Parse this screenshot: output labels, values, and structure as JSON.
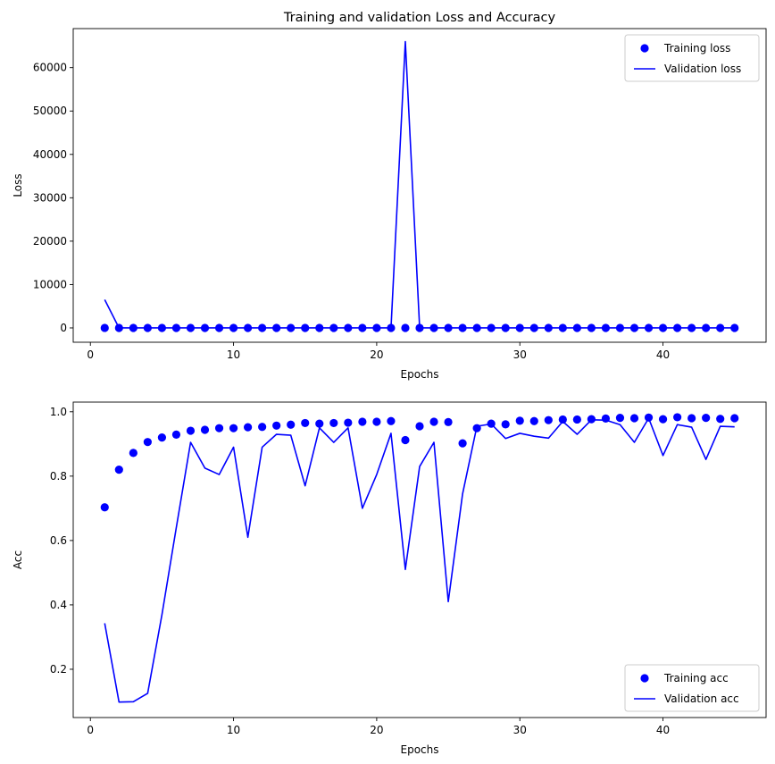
{
  "chart_data": [
    {
      "type": "line",
      "title": "Training and validation Loss and Accuracy",
      "xlabel": "Epochs",
      "ylabel": "Loss",
      "xlim": [
        -1.2,
        47.2
      ],
      "ylim": [
        -3300,
        69000
      ],
      "xticks": [
        0,
        10,
        20,
        30,
        40
      ],
      "yticks": [
        0,
        10000,
        20000,
        30000,
        40000,
        50000,
        60000
      ],
      "legend": "top-right",
      "x": [
        1,
        2,
        3,
        4,
        5,
        6,
        7,
        8,
        9,
        10,
        11,
        12,
        13,
        14,
        15,
        16,
        17,
        18,
        19,
        20,
        21,
        22,
        23,
        24,
        25,
        26,
        27,
        28,
        29,
        30,
        31,
        32,
        33,
        34,
        35,
        36,
        37,
        38,
        39,
        40,
        41,
        42,
        43,
        44,
        45
      ],
      "series": [
        {
          "name": "Training loss",
          "style": "markers",
          "color": "#0000ff",
          "values": [
            5,
            1.5,
            0.4,
            0.3,
            0.25,
            0.2,
            0.18,
            0.16,
            0.15,
            0.14,
            0.14,
            0.13,
            0.12,
            0.12,
            0.11,
            0.11,
            0.11,
            0.1,
            0.1,
            0.1,
            0.1,
            0.3,
            0.15,
            0.1,
            0.1,
            0.35,
            0.15,
            0.12,
            0.11,
            0.09,
            0.09,
            0.08,
            0.08,
            0.08,
            0.07,
            0.07,
            0.07,
            0.06,
            0.06,
            0.06,
            0.06,
            0.06,
            0.06,
            0.06,
            0.06
          ]
        },
        {
          "name": "Validation loss",
          "style": "line",
          "color": "#0000ff",
          "values": [
            6500,
            5,
            8,
            12,
            4,
            3,
            2,
            2,
            3,
            2,
            8,
            1,
            1,
            1,
            2,
            1,
            1,
            1,
            2,
            1,
            1,
            66000,
            1,
            1,
            5,
            2,
            1,
            1,
            1,
            1,
            1,
            1,
            1,
            1,
            1,
            1,
            1,
            1,
            1,
            1,
            1,
            1,
            1,
            1,
            1
          ]
        }
      ]
    },
    {
      "type": "line",
      "title": "",
      "xlabel": "Epochs",
      "ylabel": "Acc",
      "xlim": [
        -1.2,
        47.2
      ],
      "ylim": [
        0.05,
        1.03
      ],
      "xticks": [
        0,
        10,
        20,
        30,
        40
      ],
      "yticks": [
        0.2,
        0.4,
        0.6,
        0.8,
        1.0
      ],
      "legend": "bottom-right",
      "x": [
        1,
        2,
        3,
        4,
        5,
        6,
        7,
        8,
        9,
        10,
        11,
        12,
        13,
        14,
        15,
        16,
        17,
        18,
        19,
        20,
        21,
        22,
        23,
        24,
        25,
        26,
        27,
        28,
        29,
        30,
        31,
        32,
        33,
        34,
        35,
        36,
        37,
        38,
        39,
        40,
        41,
        42,
        43,
        44,
        45
      ],
      "series": [
        {
          "name": "Training acc",
          "style": "markers",
          "color": "#0000ff",
          "values": [
            0.703,
            0.82,
            0.872,
            0.906,
            0.92,
            0.929,
            0.941,
            0.944,
            0.949,
            0.949,
            0.952,
            0.953,
            0.957,
            0.96,
            0.965,
            0.963,
            0.965,
            0.966,
            0.969,
            0.969,
            0.971,
            0.912,
            0.955,
            0.969,
            0.968,
            0.902,
            0.949,
            0.963,
            0.961,
            0.972,
            0.971,
            0.974,
            0.976,
            0.976,
            0.977,
            0.979,
            0.981,
            0.98,
            0.982,
            0.977,
            0.983,
            0.98,
            0.981,
            0.978,
            0.98
          ]
        },
        {
          "name": "Validation acc",
          "style": "line",
          "color": "#0000ff",
          "values": [
            0.343,
            0.098,
            0.099,
            0.125,
            0.37,
            0.64,
            0.905,
            0.825,
            0.805,
            0.89,
            0.61,
            0.89,
            0.93,
            0.927,
            0.77,
            0.95,
            0.905,
            0.95,
            0.7,
            0.805,
            0.933,
            0.51,
            0.83,
            0.905,
            0.41,
            0.745,
            0.955,
            0.962,
            0.917,
            0.933,
            0.924,
            0.918,
            0.97,
            0.93,
            0.975,
            0.974,
            0.96,
            0.905,
            0.98,
            0.864,
            0.96,
            0.952,
            0.852,
            0.955,
            0.953
          ]
        }
      ]
    }
  ]
}
